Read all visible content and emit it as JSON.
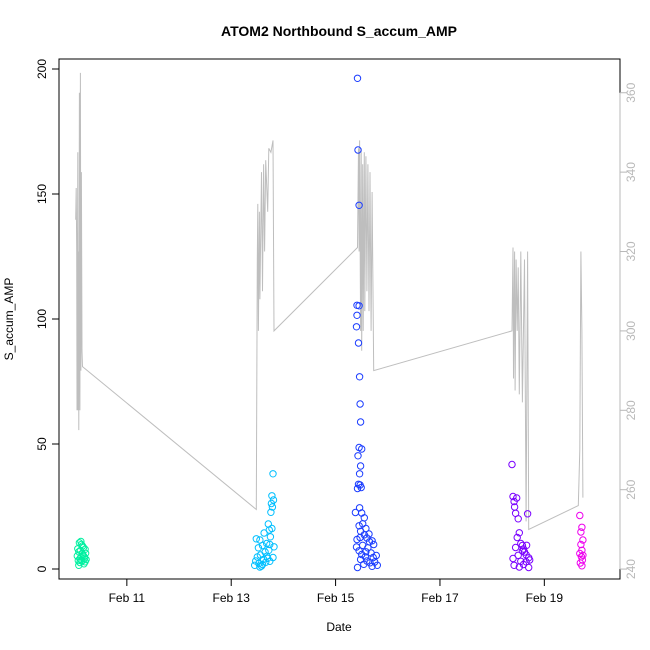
{
  "chart_data": {
    "type": "scatter",
    "title": "ATOM2 Northbound S_accum_AMP",
    "xlabel": "Date",
    "ylabel": "S_accum_AMP",
    "x_unit": "days (February, day of month)",
    "xlim": [
      9.7,
      20.45
    ],
    "ylim": [
      -4,
      204
    ],
    "y2lim": [
      237.5,
      368.5
    ],
    "x_ticks": [
      {
        "value": 11,
        "label": "Feb 11"
      },
      {
        "value": 13,
        "label": "Feb 13"
      },
      {
        "value": 15,
        "label": "Feb 15"
      },
      {
        "value": 17,
        "label": "Feb 17"
      },
      {
        "value": 19,
        "label": "Feb 19"
      }
    ],
    "y_ticks": [
      0,
      50,
      100,
      150,
      200
    ],
    "y2_ticks": [
      240,
      260,
      280,
      300,
      320,
      340,
      360
    ],
    "secondary_line_color": "#bebebe",
    "series": [
      {
        "color": "#00f0a0",
        "points": [
          [
            10.05,
            5.2
          ],
          [
            10.06,
            8.1
          ],
          [
            10.07,
            3.4
          ],
          [
            10.08,
            6.9
          ],
          [
            10.09,
            10.5
          ],
          [
            10.1,
            2.6
          ],
          [
            10.11,
            7.4
          ],
          [
            10.12,
            4.8
          ],
          [
            10.13,
            9.8
          ],
          [
            10.14,
            3.2
          ],
          [
            10.15,
            6.1
          ],
          [
            10.16,
            5.5
          ],
          [
            10.17,
            8.6
          ],
          [
            10.18,
            2.1
          ],
          [
            10.19,
            4.4
          ],
          [
            10.2,
            7.9
          ],
          [
            10.21,
            6.3
          ],
          [
            10.22,
            3.8
          ],
          [
            10.08,
            1.5
          ],
          [
            10.12,
            11.0
          ],
          [
            10.15,
            9.2
          ],
          [
            10.18,
            5.0
          ],
          [
            10.1,
            4.1
          ],
          [
            10.2,
            2.9
          ]
        ]
      },
      {
        "color": "#00bfff",
        "points": [
          [
            13.45,
            1.5
          ],
          [
            13.47,
            3.2
          ],
          [
            13.48,
            12.1
          ],
          [
            13.5,
            4.8
          ],
          [
            13.52,
            8.5
          ],
          [
            13.53,
            2.2
          ],
          [
            13.55,
            11.6
          ],
          [
            13.56,
            5.6
          ],
          [
            13.58,
            1.2
          ],
          [
            13.6,
            9.4
          ],
          [
            13.62,
            3.9
          ],
          [
            13.63,
            14.4
          ],
          [
            13.65,
            6.8
          ],
          [
            13.66,
            2.7
          ],
          [
            13.68,
            10.2
          ],
          [
            13.7,
            4.3
          ],
          [
            13.71,
            18.0
          ],
          [
            13.72,
            7.5
          ],
          [
            13.73,
            15.6
          ],
          [
            13.74,
            3.1
          ],
          [
            13.75,
            12.9
          ],
          [
            13.76,
            22.7
          ],
          [
            13.77,
            26.2
          ],
          [
            13.78,
            29.3
          ],
          [
            13.79,
            24.8
          ],
          [
            13.8,
            38.1
          ],
          [
            13.81,
            27.6
          ],
          [
            13.82,
            8.9
          ],
          [
            13.55,
            0.8
          ],
          [
            13.68,
            5.1
          ],
          [
            13.74,
            9.8
          ],
          [
            13.78,
            16.2
          ],
          [
            13.6,
            1.8
          ],
          [
            13.8,
            4.6
          ]
        ]
      },
      {
        "color": "#1a3cff",
        "points": [
          [
            15.42,
            196.3
          ],
          [
            15.43,
            167.6
          ],
          [
            15.45,
            145.5
          ],
          [
            15.41,
            105.5
          ],
          [
            15.45,
            105.3
          ],
          [
            15.41,
            101.5
          ],
          [
            15.4,
            96.9
          ],
          [
            15.44,
            90.4
          ],
          [
            15.46,
            76.9
          ],
          [
            15.48,
            58.8
          ],
          [
            15.47,
            66.0
          ],
          [
            15.45,
            48.6
          ],
          [
            15.5,
            48.0
          ],
          [
            15.43,
            45.3
          ],
          [
            15.48,
            41.2
          ],
          [
            15.46,
            38.1
          ],
          [
            15.44,
            33.9
          ],
          [
            15.47,
            33.6
          ],
          [
            15.49,
            32.6
          ],
          [
            15.42,
            32.2
          ],
          [
            15.5,
            22.4
          ],
          [
            15.38,
            22.6
          ],
          [
            15.55,
            20.5
          ],
          [
            15.46,
            24.5
          ],
          [
            15.52,
            18.1
          ],
          [
            15.45,
            17.3
          ],
          [
            15.58,
            16.2
          ],
          [
            15.48,
            15.1
          ],
          [
            15.55,
            13.7
          ],
          [
            15.6,
            12.4
          ],
          [
            15.41,
            11.8
          ],
          [
            15.65,
            10.9
          ],
          [
            15.7,
            11.3
          ],
          [
            15.52,
            9.5
          ],
          [
            15.62,
            8.5
          ],
          [
            15.45,
            7.3
          ],
          [
            15.68,
            6.4
          ],
          [
            15.5,
            5.8
          ],
          [
            15.57,
            4.9
          ],
          [
            15.72,
            4.6
          ],
          [
            15.48,
            3.8
          ],
          [
            15.6,
            3.2
          ],
          [
            15.66,
            2.5
          ],
          [
            15.54,
            1.9
          ],
          [
            15.7,
            1.1
          ],
          [
            15.42,
            0.6
          ],
          [
            15.75,
            2.8
          ],
          [
            15.78,
            5.4
          ],
          [
            15.8,
            1.5
          ],
          [
            15.4,
            8.8
          ],
          [
            15.64,
            14.0
          ],
          [
            15.58,
            6.9
          ],
          [
            15.73,
            9.8
          ],
          [
            15.47,
            12.6
          ]
        ]
      },
      {
        "color": "#7a00ff",
        "points": [
          [
            18.38,
            41.8
          ],
          [
            18.4,
            29.0
          ],
          [
            18.42,
            27.0
          ],
          [
            18.45,
            22.3
          ],
          [
            18.43,
            24.8
          ],
          [
            18.47,
            28.4
          ],
          [
            18.5,
            20.1
          ],
          [
            18.52,
            14.5
          ],
          [
            18.48,
            12.6
          ],
          [
            18.55,
            10.2
          ],
          [
            18.58,
            9.4
          ],
          [
            18.6,
            8.0
          ],
          [
            18.62,
            6.8
          ],
          [
            18.65,
            5.7
          ],
          [
            18.68,
            22.1
          ],
          [
            18.7,
            4.5
          ],
          [
            18.72,
            3.6
          ],
          [
            18.45,
            8.6
          ],
          [
            18.5,
            5.5
          ],
          [
            18.55,
            3.1
          ],
          [
            18.6,
            1.8
          ],
          [
            18.52,
            0.8
          ],
          [
            18.65,
            2.9
          ],
          [
            18.4,
            4.2
          ],
          [
            18.58,
            7.2
          ],
          [
            18.66,
            9.5
          ],
          [
            18.42,
            1.5
          ],
          [
            18.7,
            0.6
          ]
        ]
      },
      {
        "color": "#ee00ee",
        "points": [
          [
            19.68,
            21.4
          ],
          [
            19.7,
            14.8
          ],
          [
            19.72,
            16.7
          ],
          [
            19.74,
            11.6
          ],
          [
            19.7,
            9.8
          ],
          [
            19.72,
            7.5
          ],
          [
            19.68,
            6.2
          ],
          [
            19.71,
            4.9
          ],
          [
            19.73,
            3.6
          ],
          [
            19.69,
            2.4
          ],
          [
            19.72,
            1.3
          ],
          [
            19.74,
            5.5
          ]
        ]
      }
    ],
    "secondary_series": {
      "color": "#bebebe",
      "points": [
        [
          10.02,
          328
        ],
        [
          10.03,
          336
        ],
        [
          10.04,
          320
        ],
        [
          10.045,
          280
        ],
        [
          10.05,
          300
        ],
        [
          10.06,
          345
        ],
        [
          10.065,
          280
        ],
        [
          10.07,
          320
        ],
        [
          10.08,
          275
        ],
        [
          10.09,
          360
        ],
        [
          10.1,
          280
        ],
        [
          10.11,
          365
        ],
        [
          10.12,
          290
        ],
        [
          10.13,
          340
        ],
        [
          10.14,
          295
        ],
        [
          10.15,
          291
        ],
        [
          13.48,
          255
        ],
        [
          13.5,
          318
        ],
        [
          13.51,
          332
        ],
        [
          13.52,
          300
        ],
        [
          13.54,
          330
        ],
        [
          13.55,
          308
        ],
        [
          13.58,
          340
        ],
        [
          13.6,
          310
        ],
        [
          13.62,
          342
        ],
        [
          13.64,
          320
        ],
        [
          13.66,
          343
        ],
        [
          13.7,
          330
        ],
        [
          13.72,
          346
        ],
        [
          13.76,
          345
        ],
        [
          13.8,
          348
        ],
        [
          13.82,
          300
        ],
        [
          15.42,
          321
        ],
        [
          15.44,
          346
        ],
        [
          15.45,
          320
        ],
        [
          15.46,
          348
        ],
        [
          15.48,
          300
        ],
        [
          15.49,
          346
        ],
        [
          15.5,
          295
        ],
        [
          15.52,
          342
        ],
        [
          15.53,
          300
        ],
        [
          15.55,
          345
        ],
        [
          15.56,
          305
        ],
        [
          15.58,
          344
        ],
        [
          15.6,
          310
        ],
        [
          15.62,
          342
        ],
        [
          15.64,
          305
        ],
        [
          15.66,
          340
        ],
        [
          15.68,
          300
        ],
        [
          15.7,
          335
        ],
        [
          15.73,
          290
        ],
        [
          18.38,
          300
        ],
        [
          18.4,
          321
        ],
        [
          18.41,
          288
        ],
        [
          18.43,
          320
        ],
        [
          18.44,
          285
        ],
        [
          18.46,
          318
        ],
        [
          18.48,
          300
        ],
        [
          18.5,
          316
        ],
        [
          18.52,
          284
        ],
        [
          18.55,
          320
        ],
        [
          18.58,
          282
        ],
        [
          18.62,
          318
        ],
        [
          18.65,
          252
        ],
        [
          18.68,
          320
        ],
        [
          18.7,
          250
        ],
        [
          19.65,
          256
        ],
        [
          19.68,
          270
        ],
        [
          19.7,
          320
        ],
        [
          19.72,
          300
        ],
        [
          19.74,
          258
        ]
      ]
    }
  }
}
